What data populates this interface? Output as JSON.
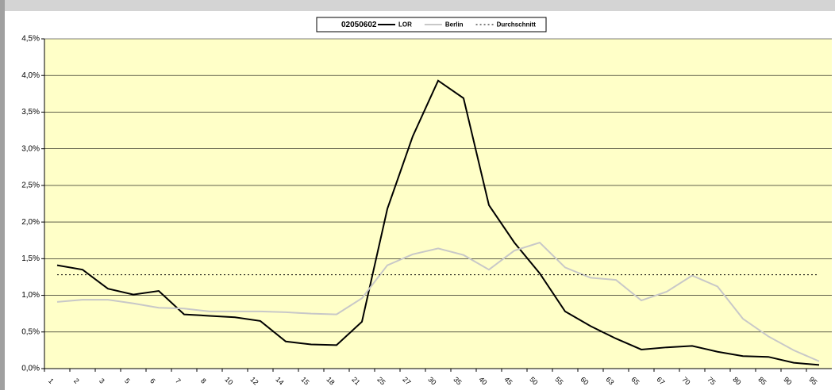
{
  "chart_data": {
    "type": "line",
    "legend_title": "02050602",
    "categories": [
      "1",
      "2",
      "3",
      "5",
      "6",
      "7",
      "8",
      "10",
      "12",
      "14",
      "15",
      "18",
      "21",
      "25",
      "27",
      "30",
      "35",
      "40",
      "45",
      "50",
      "55",
      "60",
      "63",
      "65",
      "67",
      "70",
      "75",
      "80",
      "85",
      "90",
      "95"
    ],
    "series": [
      {
        "name": "LOR",
        "color": "#000000",
        "style": "solid",
        "values": [
          1.41,
          1.35,
          1.09,
          1.01,
          1.06,
          0.74,
          0.72,
          0.7,
          0.65,
          0.37,
          0.33,
          0.32,
          0.64,
          2.18,
          3.17,
          3.93,
          3.69,
          2.23,
          1.72,
          1.3,
          0.78,
          0.58,
          0.41,
          0.26,
          0.29,
          0.31,
          0.23,
          0.17,
          0.16,
          0.08,
          0.05
        ]
      },
      {
        "name": "Berlin",
        "color": "#c8c8c8",
        "style": "solid",
        "values": [
          0.91,
          0.94,
          0.94,
          0.89,
          0.83,
          0.82,
          0.78,
          0.78,
          0.78,
          0.77,
          0.75,
          0.74,
          0.96,
          1.41,
          1.56,
          1.64,
          1.55,
          1.35,
          1.61,
          1.72,
          1.38,
          1.24,
          1.21,
          0.93,
          1.05,
          1.27,
          1.12,
          0.68,
          0.44,
          0.25,
          0.1
        ]
      },
      {
        "name": "Durchschnitt",
        "color": "#000000",
        "style": "dotted",
        "values": [
          1.28,
          1.28,
          1.28,
          1.28,
          1.28,
          1.28,
          1.28,
          1.28,
          1.28,
          1.28,
          1.28,
          1.28,
          1.28,
          1.28,
          1.28,
          1.28,
          1.28,
          1.28,
          1.28,
          1.28,
          1.28,
          1.28,
          1.28,
          1.28,
          1.28,
          1.28,
          1.28,
          1.28,
          1.28,
          1.28,
          1.28
        ]
      }
    ],
    "ylim": [
      0,
      4.5
    ],
    "yticks": [
      {
        "value": 0,
        "label": "0,0%"
      },
      {
        "value": 0.5,
        "label": "0,5%"
      },
      {
        "value": 1,
        "label": "1,0%"
      },
      {
        "value": 1.5,
        "label": "1,5%"
      },
      {
        "value": 2,
        "label": "2,0%"
      },
      {
        "value": 2.5,
        "label": "2,5%"
      },
      {
        "value": 3,
        "label": "3,0%"
      },
      {
        "value": 3.5,
        "label": "3,5%"
      },
      {
        "value": 4,
        "label": "4,0%"
      },
      {
        "value": 4.5,
        "label": "4,5%"
      }
    ],
    "grid": true,
    "plot_background": "#ffffc8"
  }
}
